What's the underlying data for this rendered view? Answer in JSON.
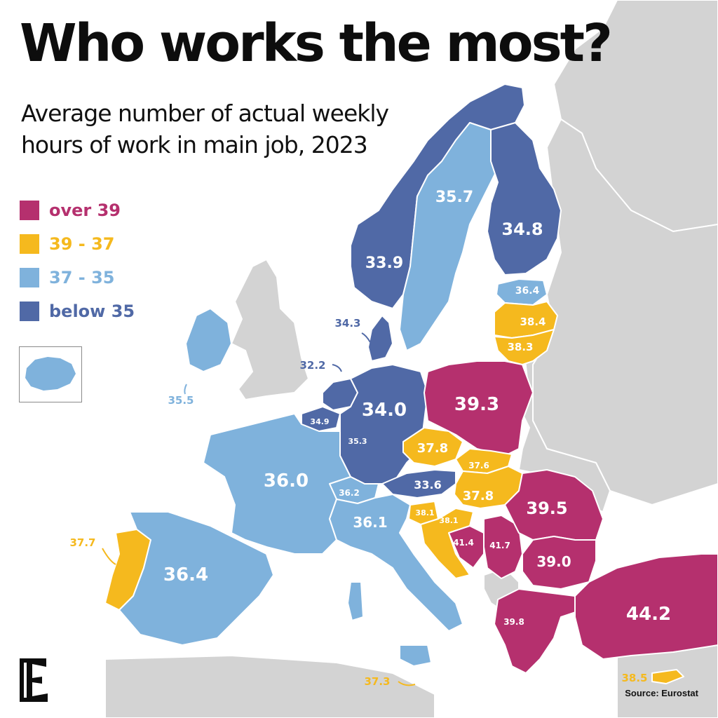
{
  "title": "Who works the most?",
  "subtitle_line1": "Average number of actual weekly",
  "subtitle_line2": "hours of work in main job, 2023",
  "source": "Source: Eurostat",
  "legend": [
    {
      "label": "over 39",
      "color": "#b5306e"
    },
    {
      "label": "39 - 37",
      "color": "#f5b91e"
    },
    {
      "label": "37 - 35",
      "color": "#7fb2dc"
    },
    {
      "label": "below 35",
      "color": "#5069a6"
    }
  ],
  "colors": {
    "non_eu_land": "#d3d3d3",
    "sea": "#ffffff",
    "border": "#ffffff"
  },
  "countries": [
    {
      "id": "norway",
      "value": "33.9"
    },
    {
      "id": "sweden",
      "value": "35.7"
    },
    {
      "id": "finland",
      "value": "34.8"
    },
    {
      "id": "estonia",
      "value": "36.4"
    },
    {
      "id": "latvia",
      "value": "38.4"
    },
    {
      "id": "lithuania",
      "value": "38.3"
    },
    {
      "id": "denmark",
      "value": "34.3"
    },
    {
      "id": "netherlands",
      "value": "32.2"
    },
    {
      "id": "ireland",
      "value": "35.5"
    },
    {
      "id": "iceland",
      "value": "36.2"
    },
    {
      "id": "belgium",
      "value": "34.9"
    },
    {
      "id": "luxembourg",
      "value": "35.3"
    },
    {
      "id": "germany",
      "value": "34.0"
    },
    {
      "id": "poland",
      "value": "39.3"
    },
    {
      "id": "czechia",
      "value": "37.8"
    },
    {
      "id": "slovakia",
      "value": "37.6"
    },
    {
      "id": "austria",
      "value": "33.6"
    },
    {
      "id": "hungary",
      "value": "37.8"
    },
    {
      "id": "switzerland",
      "value": "36.2"
    },
    {
      "id": "france",
      "value": "36.0"
    },
    {
      "id": "italy",
      "value": "36.1"
    },
    {
      "id": "slovenia",
      "value": "38.1"
    },
    {
      "id": "croatia",
      "value": "38.1"
    },
    {
      "id": "bosnia",
      "value": "41.4"
    },
    {
      "id": "serbia",
      "value": "41.7"
    },
    {
      "id": "romania",
      "value": "39.5"
    },
    {
      "id": "bulgaria",
      "value": "39.0"
    },
    {
      "id": "greece",
      "value": "39.8"
    },
    {
      "id": "turkey",
      "value": "44.2"
    },
    {
      "id": "cyprus",
      "value": "38.5"
    },
    {
      "id": "malta",
      "value": "37.3"
    },
    {
      "id": "portugal",
      "value": "37.7"
    },
    {
      "id": "spain",
      "value": "36.4"
    }
  ]
}
